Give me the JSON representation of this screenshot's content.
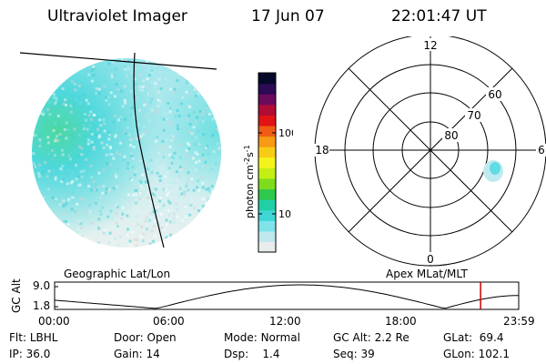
{
  "header": {
    "title": "Ultraviolet Imager",
    "date": "17 Jun 07",
    "time": "22:01:47 UT"
  },
  "left_panel": {
    "label": "Geographic Lat/Lon"
  },
  "right_panel": {
    "label": "Apex MLat/MLT"
  },
  "colorbar": {
    "unit": "photon cm",
    "unit_exp1": "-2",
    "unit_mid": "s",
    "unit_exp2": "-1",
    "ticks": [
      "100",
      "10"
    ],
    "scale": "log",
    "colors": [
      "#e8ecec",
      "#bfe8ee",
      "#7fe3ea",
      "#3fd6d6",
      "#21cfa6",
      "#2ec84c",
      "#7edc1c",
      "#c4ee14",
      "#f4f41c",
      "#f8cc16",
      "#f89a14",
      "#f05c14",
      "#e01414",
      "#b00c36",
      "#6c0a5c",
      "#2c0a54",
      "#06082a"
    ]
  },
  "polar": {
    "lat_labels": [
      "60",
      "70",
      "80"
    ],
    "mlt_labels": [
      "12",
      "18",
      "6",
      "0"
    ]
  },
  "timeline": {
    "axis_label": "GC Alt",
    "y_ticks": [
      "9.0",
      "1.8"
    ],
    "x_ticks": [
      "00:00",
      "06:00",
      "12:00",
      "18:00",
      "23:59"
    ],
    "marker_color": "#cc0000"
  },
  "footer": {
    "row1": [
      {
        "key": "Flt:",
        "value": "LBHL"
      },
      {
        "key": "Door:",
        "value": "Open"
      },
      {
        "key": "Mode:",
        "value": "Normal"
      },
      {
        "key": "GC Alt:",
        "value": "2.2 Re"
      },
      {
        "key": "GLat:",
        "value": "69.4"
      }
    ],
    "row2": [
      {
        "key": "IP:",
        "value": "36.0"
      },
      {
        "key": "Gain:",
        "value": "14"
      },
      {
        "key": "Dsp:",
        "value": "1.4"
      },
      {
        "key": "Seq:",
        "value": "39"
      },
      {
        "key": "GLon:",
        "value": "102.1"
      }
    ]
  }
}
